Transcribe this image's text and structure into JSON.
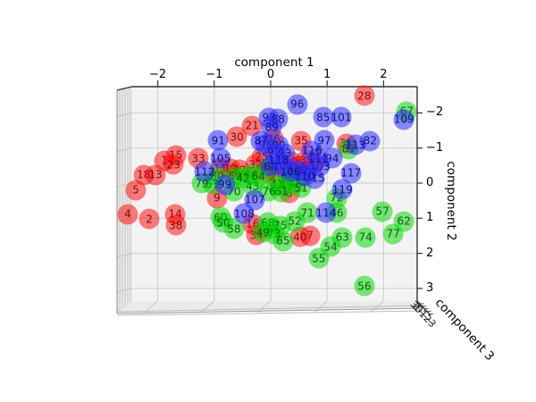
{
  "chart_data": {
    "type": "scatter",
    "projection": "3d",
    "xlabel": "component 1",
    "ylabel": "component 2",
    "zlabel": "component 3",
    "xticks": [
      -2,
      -1,
      0,
      1,
      2
    ],
    "yticks": [
      -2,
      -1,
      0,
      1,
      2,
      3
    ],
    "zticks": [
      3,
      2,
      1,
      0,
      -1,
      -2,
      -3
    ],
    "grid": true,
    "legend_position": "none",
    "marker_alpha": 0.55,
    "point_format": [
      "sample_index",
      "component1",
      "component2_projected"
    ],
    "classes": [
      {
        "name": "class-red",
        "color": "#ff0000",
        "fill": "rgba(255,0,0,0.50)",
        "label_color": "#7a0c0c",
        "points": [
          [
            28,
            1.66,
            -2.49
          ],
          [
            21,
            -0.33,
            -1.63
          ],
          [
            30,
            -0.6,
            -1.32
          ],
          [
            35,
            0.54,
            -1.2
          ],
          [
            15,
            -1.68,
            -0.79
          ],
          [
            1,
            -1.88,
            -0.64
          ],
          [
            23,
            -1.72,
            -0.53
          ],
          [
            33,
            -1.28,
            -0.71
          ],
          [
            11,
            -0.89,
            -0.43
          ],
          [
            19,
            -0.71,
            -0.41
          ],
          [
            18,
            -2.25,
            -0.23
          ],
          [
            13,
            -2.04,
            -0.23
          ],
          [
            5,
            -2.39,
            0.2
          ],
          [
            4,
            -2.53,
            0.89
          ],
          [
            2,
            -2.15,
            1.02
          ],
          [
            14,
            -1.69,
            0.89
          ],
          [
            38,
            -1.68,
            1.2
          ],
          [
            36,
            0.05,
            -1.27
          ],
          [
            9,
            -0.95,
            0.43
          ],
          [
            16,
            -0.32,
            1.17
          ],
          [
            6,
            0.33,
            0.28
          ],
          [
            31,
            1.34,
            -1.12
          ],
          [
            7,
            0.7,
            1.5
          ],
          [
            40,
            0.52,
            1.53
          ],
          [
            25,
            -0.16,
            -0.74
          ],
          [
            32,
            -0.27,
            -0.53
          ],
          [
            17,
            -0.08,
            -0.31
          ],
          [
            29,
            0.11,
            -0.2
          ],
          [
            37,
            0.63,
            -0.66
          ],
          [
            10,
            0.36,
            -0.61
          ],
          [
            22,
            -0.55,
            -0.38
          ],
          [
            34,
            -0.25,
            1.48
          ],
          [
            24,
            0.49,
            -0.48
          ],
          [
            27,
            0.78,
            -0.56
          ]
        ]
      },
      {
        "name": "class-green",
        "color": "#00dd00",
        "fill": "rgba(0,215,0,0.52)",
        "label_color": "#0b5d0b",
        "points": [
          [
            67,
            2.41,
            -2.04
          ],
          [
            81,
            1.38,
            -0.97
          ],
          [
            80,
            -0.95,
            -0.2
          ],
          [
            59,
            -0.63,
            -0.18
          ],
          [
            66,
            -0.35,
            -0.23
          ],
          [
            53,
            -1.03,
            0.03
          ],
          [
            79,
            -1.22,
            0.0
          ],
          [
            43,
            -0.32,
            0.08
          ],
          [
            41,
            0.11,
            0.05
          ],
          [
            45,
            0.27,
            0.05
          ],
          [
            61,
            0.19,
            0.25
          ],
          [
            76,
            -0.03,
            0.23
          ],
          [
            42,
            -0.49,
            -0.15
          ],
          [
            44,
            -0.05,
            -0.43
          ],
          [
            64,
            -0.22,
            -0.18
          ],
          [
            48,
            0.44,
            0.0
          ],
          [
            51,
            0.54,
            0.13
          ],
          [
            69,
            0.36,
            -0.23
          ],
          [
            60,
            -0.89,
            0.97
          ],
          [
            50,
            -0.84,
            1.12
          ],
          [
            58,
            -0.65,
            1.3
          ],
          [
            68,
            -0.05,
            1.12
          ],
          [
            47,
            0.02,
            1.3
          ],
          [
            75,
            0.17,
            1.22
          ],
          [
            52,
            0.43,
            1.09
          ],
          [
            73,
            0.06,
            1.45
          ],
          [
            65,
            0.22,
            1.65
          ],
          [
            49,
            -0.14,
            1.4
          ],
          [
            71,
            0.65,
            0.84
          ],
          [
            72,
            1.17,
            0.43
          ],
          [
            46,
            1.17,
            0.84
          ],
          [
            57,
            1.98,
            0.81
          ],
          [
            62,
            2.36,
            1.09
          ],
          [
            77,
            2.17,
            1.45
          ],
          [
            74,
            1.68,
            1.55
          ],
          [
            63,
            1.27,
            1.55
          ],
          [
            54,
            1.06,
            1.81
          ],
          [
            55,
            0.85,
            2.14
          ],
          [
            56,
            1.66,
            2.93
          ],
          [
            70,
            -0.65,
            0.23
          ]
        ]
      },
      {
        "name": "class-blue",
        "color": "#2222ff",
        "fill": "rgba(43,43,255,0.55)",
        "label_color": "#101080",
        "points": [
          [
            96,
            0.47,
            -2.24
          ],
          [
            85,
            0.93,
            -1.88
          ],
          [
            101,
            1.25,
            -1.88
          ],
          [
            109,
            2.36,
            -1.81
          ],
          [
            98,
            -0.03,
            -1.86
          ],
          [
            88,
            0.13,
            -1.83
          ],
          [
            89,
            0.02,
            -1.6
          ],
          [
            91,
            -0.93,
            -1.22
          ],
          [
            97,
            0.95,
            -1.22
          ],
          [
            95,
            -0.09,
            -1.09
          ],
          [
            90,
            0.14,
            -1.07
          ],
          [
            82,
            1.76,
            -1.2
          ],
          [
            113,
            1.5,
            -1.09
          ],
          [
            94,
            1.09,
            -0.71
          ],
          [
            103,
            0.87,
            -0.48
          ],
          [
            102,
            0.65,
            -0.33
          ],
          [
            115,
            0.78,
            -0.13
          ],
          [
            117,
            1.42,
            -0.28
          ],
          [
            119,
            1.27,
            0.18
          ],
          [
            114,
            0.98,
            0.84
          ],
          [
            107,
            -0.28,
            0.48
          ],
          [
            108,
            -0.47,
            0.87
          ],
          [
            105,
            -0.89,
            -0.71
          ],
          [
            112,
            -1.17,
            -0.33
          ],
          [
            99,
            -0.81,
            0.05
          ],
          [
            84,
            0.0,
            -0.48
          ],
          [
            104,
            0.22,
            -0.48
          ],
          [
            100,
            0.47,
            -0.38
          ],
          [
            87,
            -0.17,
            -1.2
          ],
          [
            92,
            0.06,
            -0.87
          ],
          [
            93,
            0.25,
            -0.84
          ],
          [
            110,
            0.6,
            -0.2
          ],
          [
            111,
            0.84,
            -0.71
          ],
          [
            116,
            0.73,
            -0.92
          ],
          [
            106,
            0.35,
            -0.33
          ],
          [
            118,
            0.14,
            -0.66
          ]
        ]
      }
    ]
  }
}
